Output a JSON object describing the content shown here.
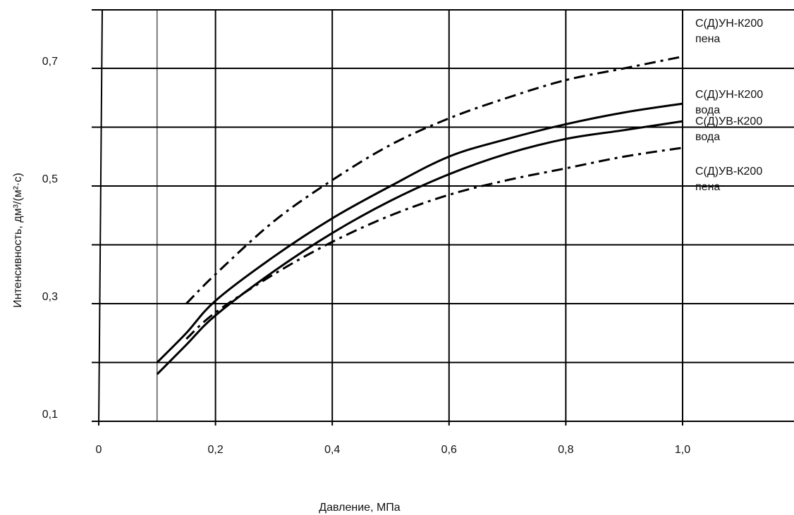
{
  "chart_data": {
    "type": "line",
    "title": "",
    "xlabel": "Давление, МПа",
    "ylabel": "Интенсивность, дм³/(м²·с)",
    "xlim": [
      0,
      1.2
    ],
    "ylim": [
      0.1,
      0.8
    ],
    "x_ticks": [
      "0",
      "0,2",
      "0,4",
      "0,6",
      "0,8",
      "1,0"
    ],
    "y_ticks": [
      "0,1",
      "0,3",
      "0,5",
      "0,7"
    ],
    "grid": true,
    "legend_position": "right",
    "series": [
      {
        "name": "С(Д)УН-К200\nпена",
        "style": "dashdot",
        "x": [
          0.15,
          0.2,
          0.3,
          0.4,
          0.5,
          0.6,
          0.7,
          0.8,
          0.9,
          1.0
        ],
        "y": [
          0.3,
          0.35,
          0.44,
          0.51,
          0.57,
          0.615,
          0.65,
          0.68,
          0.7,
          0.72
        ]
      },
      {
        "name": "С(Д)УН-К200\nвода",
        "style": "solid",
        "x": [
          0.1,
          0.15,
          0.2,
          0.3,
          0.4,
          0.5,
          0.6,
          0.7,
          0.8,
          0.9,
          1.0
        ],
        "y": [
          0.2,
          0.25,
          0.305,
          0.38,
          0.445,
          0.5,
          0.55,
          0.58,
          0.605,
          0.625,
          0.64
        ]
      },
      {
        "name": "С(Д)УВ-К200\nвода",
        "style": "solid",
        "x": [
          0.1,
          0.15,
          0.2,
          0.3,
          0.4,
          0.5,
          0.6,
          0.7,
          0.8,
          0.9,
          1.0
        ],
        "y": [
          0.18,
          0.23,
          0.28,
          0.355,
          0.42,
          0.475,
          0.52,
          0.555,
          0.58,
          0.595,
          0.61
        ]
      },
      {
        "name": "С(Д)УВ-К200\nпена",
        "style": "dashdot",
        "x": [
          0.15,
          0.2,
          0.3,
          0.4,
          0.5,
          0.6,
          0.7,
          0.8,
          0.9,
          1.0
        ],
        "y": [
          0.24,
          0.285,
          0.35,
          0.405,
          0.45,
          0.485,
          0.51,
          0.53,
          0.55,
          0.565
        ]
      }
    ]
  }
}
